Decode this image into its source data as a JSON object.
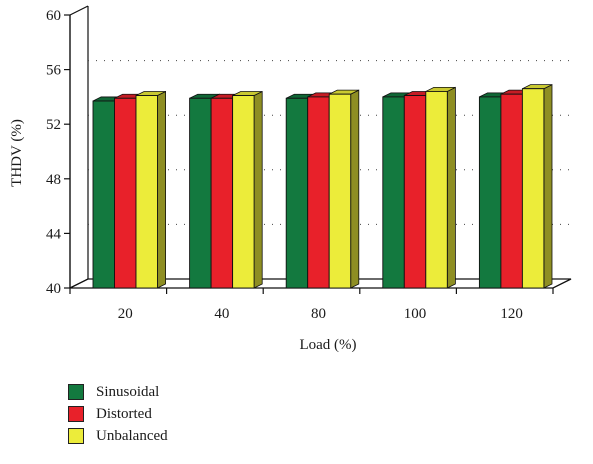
{
  "chart_data": {
    "type": "bar",
    "style": "3d-grouped",
    "categories": [
      "20",
      "40",
      "80",
      "100",
      "120"
    ],
    "series": [
      {
        "name": "Sinusoidal",
        "color": "#13793f",
        "values": [
          53.7,
          53.9,
          53.9,
          54.0,
          54.0
        ]
      },
      {
        "name": "Distorted",
        "color": "#e8212a",
        "values": [
          53.9,
          53.9,
          54.0,
          54.1,
          54.2
        ]
      },
      {
        "name": "Unbalanced",
        "color": "#ecec3a",
        "values": [
          54.1,
          54.1,
          54.2,
          54.4,
          54.6
        ]
      }
    ],
    "xlabel": "Load (%)",
    "ylabel": "THDV (%)",
    "ylim": [
      40,
      60
    ],
    "yticks": [
      "40",
      "44",
      "48",
      "52",
      "56",
      "60"
    ],
    "grid": "dotted",
    "legend_position": "bottom-left"
  }
}
